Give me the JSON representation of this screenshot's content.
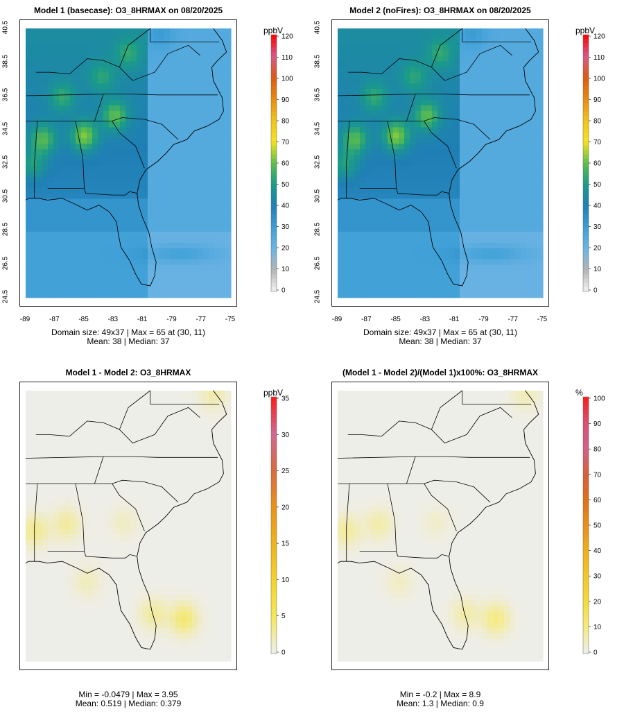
{
  "panels": [
    {
      "title": "Model 1 (basecase): O3_8HRMAX on 08/20/2025",
      "stats1": "Domain size: 49x37 | Max = 65 at (30, 11)",
      "stats2": "Mean: 38 |  Median: 37",
      "unit": "ppbV",
      "colorbar_ticks": [
        "0",
        "10",
        "20",
        "30",
        "40",
        "50",
        "60",
        "70",
        "80",
        "90",
        "100",
        "110",
        "120"
      ],
      "show_axes": true
    },
    {
      "title": "Model 2 (noFires): O3_8HRMAX on 08/20/2025",
      "stats1": "Domain size: 49x37 | Max = 65 at (30, 11)",
      "stats2": "Mean: 38 |  Median: 37",
      "unit": "ppbV",
      "colorbar_ticks": [
        "0",
        "10",
        "20",
        "30",
        "40",
        "50",
        "60",
        "70",
        "80",
        "90",
        "100",
        "110",
        "120"
      ],
      "show_axes": true
    },
    {
      "title": "Model 1 - Model 2: O3_8HRMAX",
      "stats1": "Min = -0.0479 | Max = 3.95",
      "stats2": "Mean: 0.519 |  Median: 0.379",
      "unit": "ppbV",
      "colorbar_ticks": [
        "0",
        "5",
        "10",
        "15",
        "20",
        "25",
        "30",
        "35"
      ],
      "show_axes": false
    },
    {
      "title": "(Model 1 - Model 2)/(Model 1)x100%: O3_8HRMAX",
      "stats1": "Min = -0.2 | Max = 8.9",
      "stats2": "Mean: 1.3 |  Median: 0.9",
      "unit": "%",
      "colorbar_ticks": [
        "0",
        "10",
        "20",
        "30",
        "40",
        "50",
        "60",
        "70",
        "80",
        "90",
        "100"
      ],
      "show_axes": false
    }
  ],
  "axes": {
    "y_ticks": [
      "24.5",
      "26.5",
      "28.5",
      "30.5",
      "32.5",
      "34.5",
      "36.5",
      "38.5",
      "40.5"
    ],
    "x_ticks": [
      "-89",
      "-87",
      "-85",
      "-83",
      "-81",
      "-79",
      "-77",
      "-75"
    ]
  },
  "chart_data": [
    {
      "type": "heatmap",
      "title": "Model 1 (basecase): O3_8HRMAX on 08/20/2025",
      "variable": "O3_8HRMAX",
      "unit": "ppbV",
      "colorbar_range": [
        0,
        120
      ],
      "xlim": [
        -89,
        -75
      ],
      "ylim": [
        24.5,
        40.5
      ],
      "domain_size": "49x37",
      "max": 65,
      "max_at": [
        30,
        11
      ],
      "mean": 38,
      "median": 37
    },
    {
      "type": "heatmap",
      "title": "Model 2 (noFires): O3_8HRMAX on 08/20/2025",
      "variable": "O3_8HRMAX",
      "unit": "ppbV",
      "colorbar_range": [
        0,
        120
      ],
      "xlim": [
        -89,
        -75
      ],
      "ylim": [
        24.5,
        40.5
      ],
      "domain_size": "49x37",
      "max": 65,
      "max_at": [
        30,
        11
      ],
      "mean": 38,
      "median": 37
    },
    {
      "type": "heatmap",
      "title": "Model 1 - Model 2: O3_8HRMAX",
      "unit": "ppbV",
      "colorbar_range": [
        0,
        35
      ],
      "min": -0.0479,
      "max": 3.95,
      "mean": 0.519,
      "median": 0.379
    },
    {
      "type": "heatmap",
      "title": "(Model 1 - Model 2)/(Model 1)x100%: O3_8HRMAX",
      "unit": "%",
      "colorbar_range": [
        0,
        100
      ],
      "min": -0.2,
      "max": 8.9,
      "mean": 1.3,
      "median": 0.9
    }
  ]
}
